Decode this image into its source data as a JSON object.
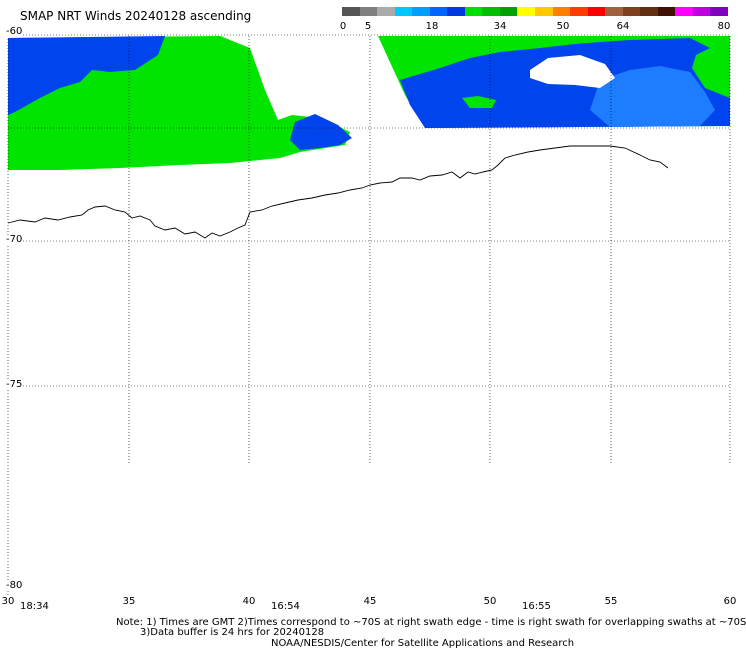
{
  "title": "SMAP NRT Winds 20240128 ascending",
  "colorbar": {
    "segments": [
      {
        "color": "#555555"
      },
      {
        "color": "#7f7f7f"
      },
      {
        "color": "#aaaaaa"
      },
      {
        "color": "#00c8ff"
      },
      {
        "color": "#009fff"
      },
      {
        "color": "#0064ff"
      },
      {
        "color": "#0038e0"
      },
      {
        "color": "#00e000"
      },
      {
        "color": "#00c000"
      },
      {
        "color": "#00a000"
      },
      {
        "color": "#ffff00"
      },
      {
        "color": "#ffc800"
      },
      {
        "color": "#ff8000"
      },
      {
        "color": "#ff3c00"
      },
      {
        "color": "#ff0000"
      },
      {
        "color": "#a06040"
      },
      {
        "color": "#804020"
      },
      {
        "color": "#603010"
      },
      {
        "color": "#401000"
      },
      {
        "color": "#ff00ff"
      },
      {
        "color": "#c000e0"
      },
      {
        "color": "#8000c0"
      }
    ],
    "ticks": [
      "0",
      "5",
      "18",
      "34",
      "50",
      "64",
      "80"
    ]
  },
  "lat_labels": [
    "-60",
    "-70",
    "-75",
    "-80"
  ],
  "lon_labels": [
    "30",
    "35",
    "40",
    "45",
    "50",
    "55",
    "60"
  ],
  "time_labels": [
    "18:34",
    "16:54",
    "16:55"
  ],
  "notes": {
    "line1": "Note: 1) Times are GMT 2)Times correspond to ~70S at right swath edge - time is right swath for overlapping swaths at ~70S",
    "line2": "3)Data buffer is 24 hrs for 20240128",
    "line3": "NOAA/NESDIS/Center for Satellite Applications and Research"
  },
  "colors": {
    "wind_5_18": "#0044ee",
    "wind_18_34": "#00e400",
    "wind_low": "#00a8ff",
    "coast": "#000000",
    "grid": "#000000"
  }
}
